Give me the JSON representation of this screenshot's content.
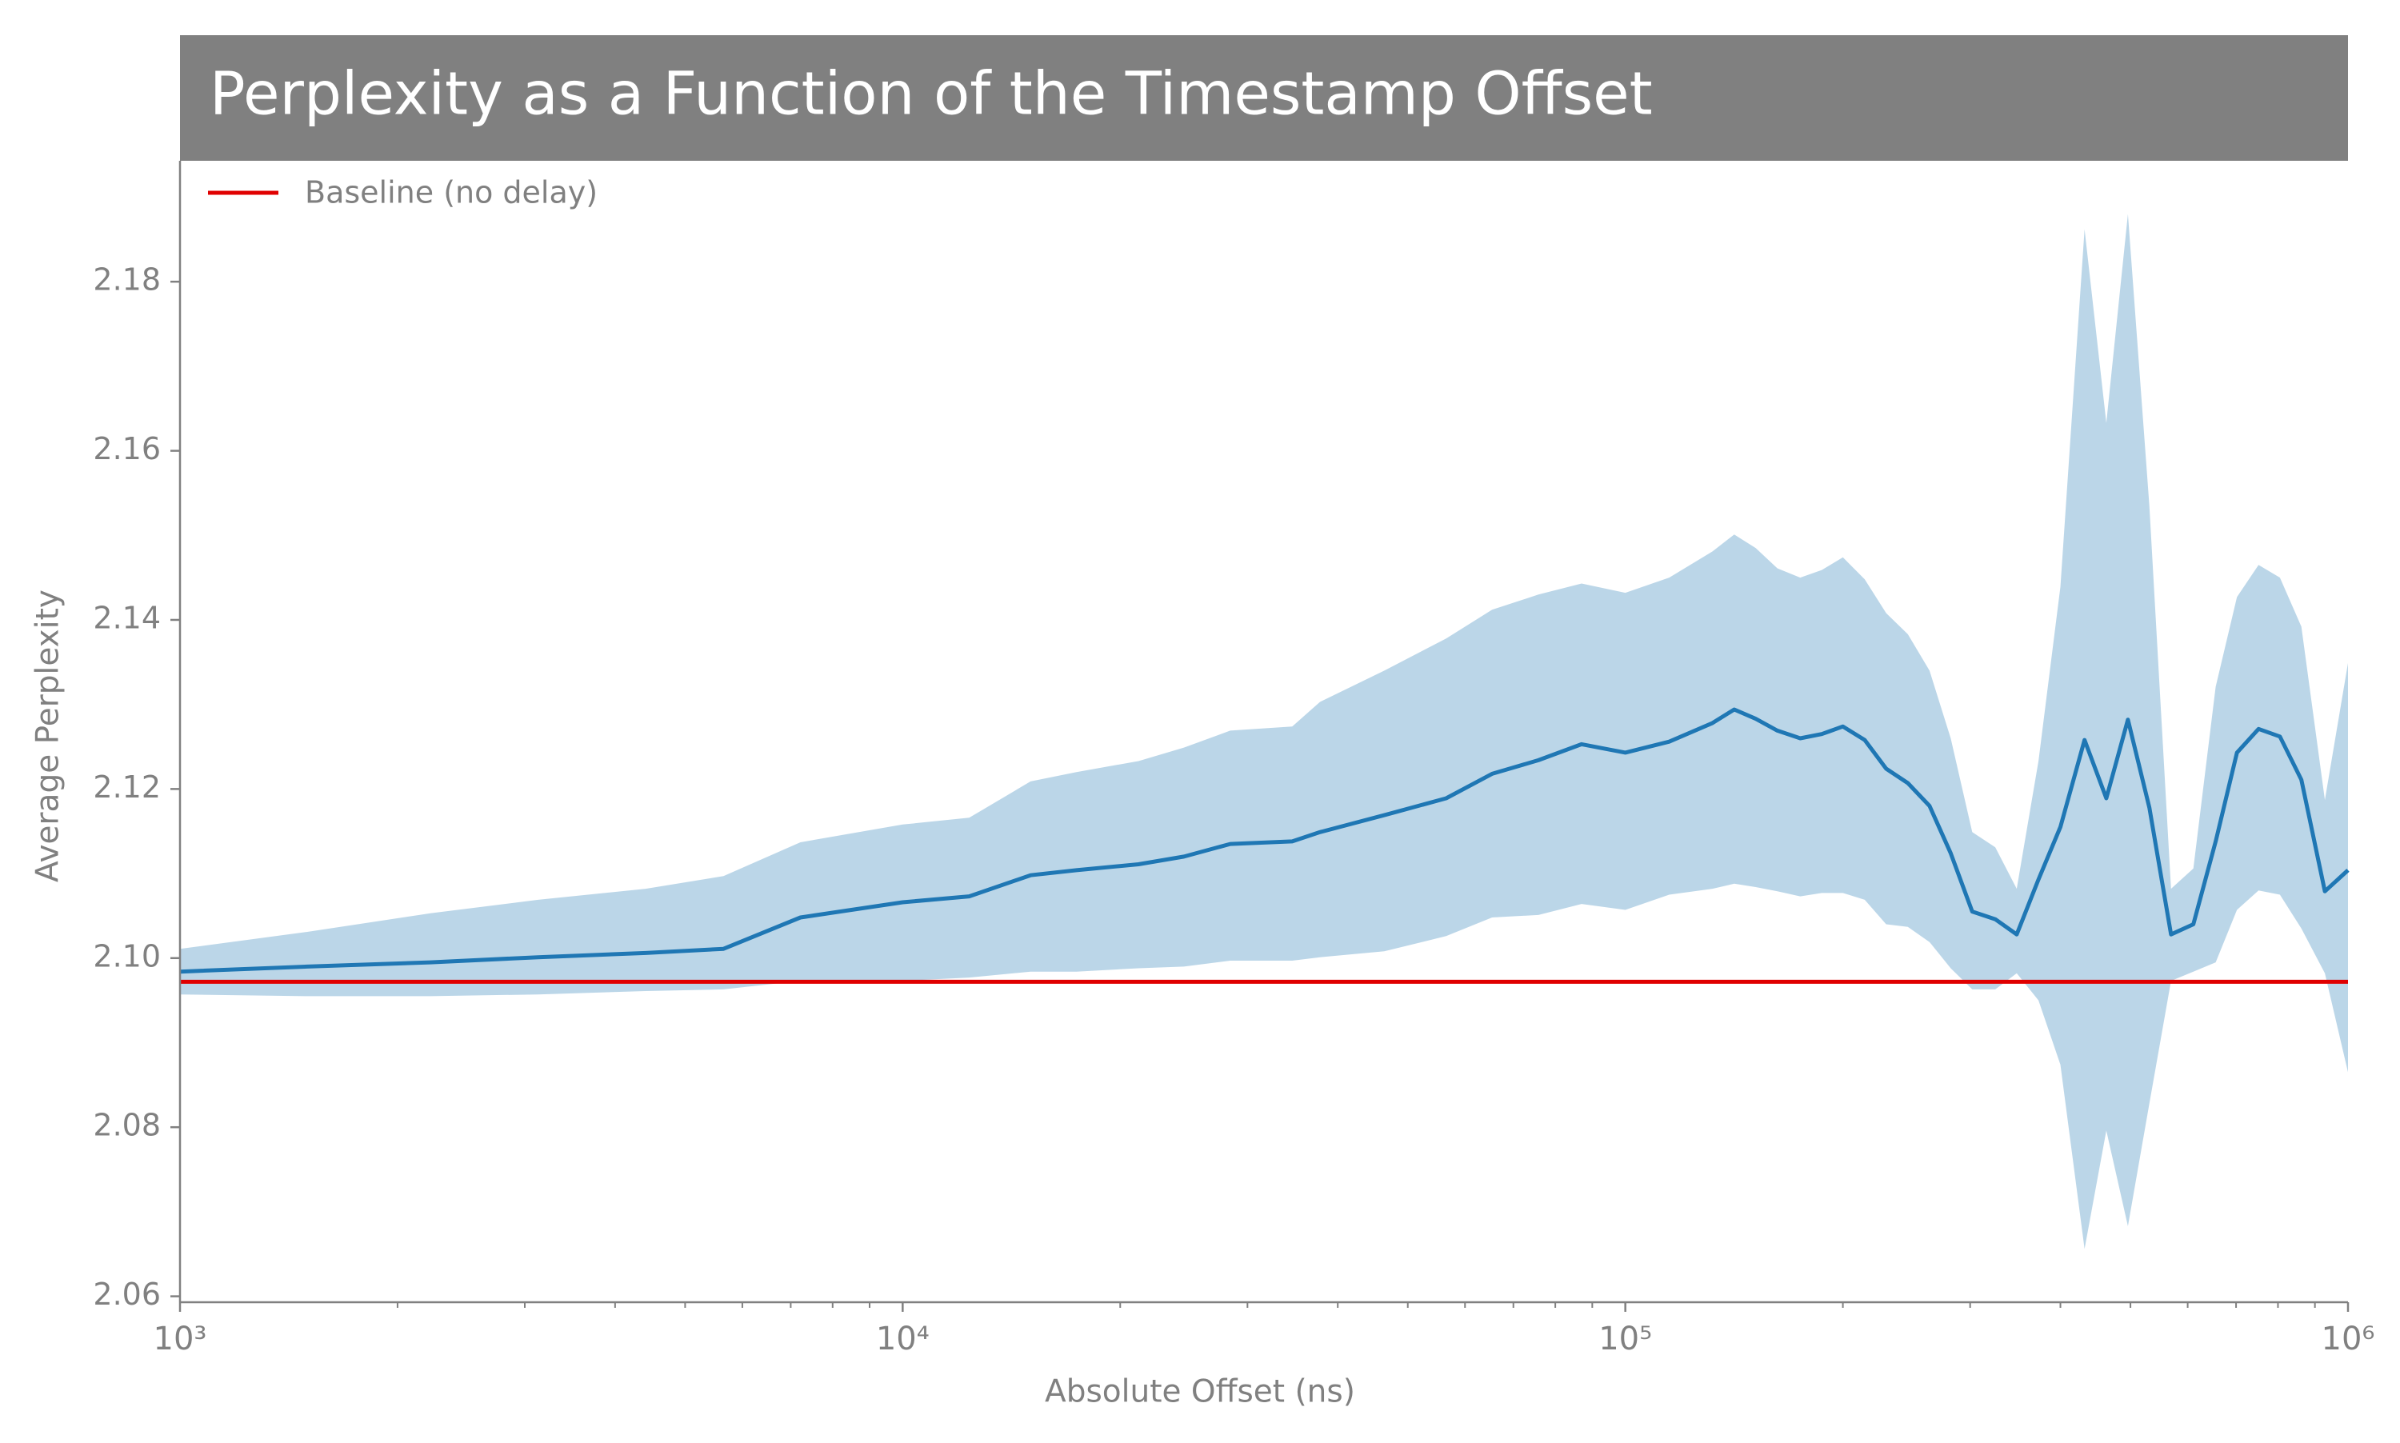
{
  "chart_data": {
    "type": "line",
    "title": "Perplexity as a Function of the Timestamp Offset",
    "xlabel": "Absolute Offset (ns)",
    "ylabel": "Average Perplexity",
    "xscale": "log",
    "x": [
      1000,
      1500,
      2220,
      3130,
      4410,
      5650,
      7220,
      10000,
      12360,
      15030,
      17400,
      21200,
      24500,
      28400,
      34600,
      37800,
      46400,
      56500,
      65400,
      75800,
      87000,
      100000,
      115000,
      132000,
      141500,
      151500,
      162300,
      174600,
      187000,
      200000,
      214400,
      229600,
      246000,
      263600,
      282000,
      302000,
      325000,
      348000,
      373000,
      400000,
      432000,
      463000,
      496000,
      531000,
      569000,
      611000,
      656000,
      702000,
      752000,
      805000,
      862000,
      929000,
      1000000
    ],
    "line": {
      "color": "#1f77b4",
      "values": [
        2.0984,
        2.099,
        2.0995,
        2.1001,
        2.1006,
        2.1011,
        2.1048,
        2.1066,
        2.1073,
        2.1098,
        2.1104,
        2.1111,
        2.112,
        2.1135,
        2.1138,
        2.1149,
        2.1169,
        2.1189,
        2.1218,
        2.1234,
        2.1253,
        2.1243,
        2.1256,
        2.1278,
        2.1294,
        2.1283,
        2.1269,
        2.126,
        2.1265,
        2.1274,
        2.1258,
        2.1224,
        2.1207,
        2.118,
        2.1124,
        2.1055,
        2.1046,
        2.1028,
        2.1093,
        2.1155,
        2.1258,
        2.1189,
        2.1282,
        2.1178,
        2.1028,
        2.104,
        2.1138,
        2.1243,
        2.1271,
        2.1262,
        2.1211,
        2.1079,
        2.1104
      ]
    },
    "band": {
      "color": "#1f77b4",
      "alpha": 0.3,
      "lower": [
        2.0957,
        2.0955,
        2.0955,
        2.0957,
        2.0961,
        2.0963,
        2.0973,
        2.0973,
        2.0977,
        2.0984,
        2.0984,
        2.0988,
        2.099,
        2.0997,
        2.0997,
        2.1001,
        2.1008,
        2.1026,
        2.1048,
        2.1051,
        2.1064,
        2.1057,
        2.1075,
        2.1082,
        2.1088,
        2.1084,
        2.1079,
        2.1073,
        2.1077,
        2.1077,
        2.1069,
        2.104,
        2.1037,
        2.1019,
        2.0988,
        2.0963,
        2.0963,
        2.0982,
        2.095,
        2.0874,
        2.0656,
        2.0796,
        2.0683,
        2.0828,
        2.0973,
        2.0984,
        2.0995,
        2.1057,
        2.108,
        2.1075,
        2.1035,
        2.0982,
        2.0865
      ],
      "upper": [
        2.1011,
        2.1031,
        2.1053,
        2.1069,
        2.1082,
        2.1097,
        2.1137,
        2.1158,
        2.1166,
        2.1209,
        2.122,
        2.1233,
        2.1249,
        2.1269,
        2.1274,
        2.1303,
        2.134,
        2.1378,
        2.1412,
        2.143,
        2.1443,
        2.1432,
        2.145,
        2.1481,
        2.1501,
        2.1485,
        2.1461,
        2.145,
        2.1459,
        2.1474,
        2.1448,
        2.1408,
        2.1383,
        2.134,
        2.126,
        2.1149,
        2.1131,
        2.1082,
        2.1233,
        2.1439,
        2.1862,
        2.1633,
        2.188,
        2.1535,
        2.1082,
        2.1106,
        2.1321,
        2.1427,
        2.1465,
        2.145,
        2.1392,
        2.1187,
        2.1349
      ]
    },
    "baseline": {
      "name": "Baseline (no delay)",
      "color": "#e00000",
      "value": 2.0972
    },
    "xlim": [
      1000,
      1000000
    ],
    "ylim": [
      2.0593,
      2.1943
    ],
    "xticks": [
      {
        "value": 1000,
        "label": "10³"
      },
      {
        "value": 10000,
        "label": "10⁴"
      },
      {
        "value": 100000,
        "label": "10⁵"
      },
      {
        "value": 1000000,
        "label": "10⁶"
      }
    ],
    "xminorticks": [
      2000,
      3000,
      4000,
      5000,
      6000,
      7000,
      8000,
      9000,
      20000,
      30000,
      40000,
      50000,
      60000,
      70000,
      80000,
      90000,
      200000,
      300000,
      400000,
      500000,
      600000,
      700000,
      800000,
      900000
    ],
    "yticks": [
      2.06,
      2.08,
      {
        "value": 2.1,
        "label": "2.10"
      },
      2.12,
      2.14,
      2.16,
      2.18
    ],
    "legend": "upper left",
    "title_background": "#808080"
  }
}
